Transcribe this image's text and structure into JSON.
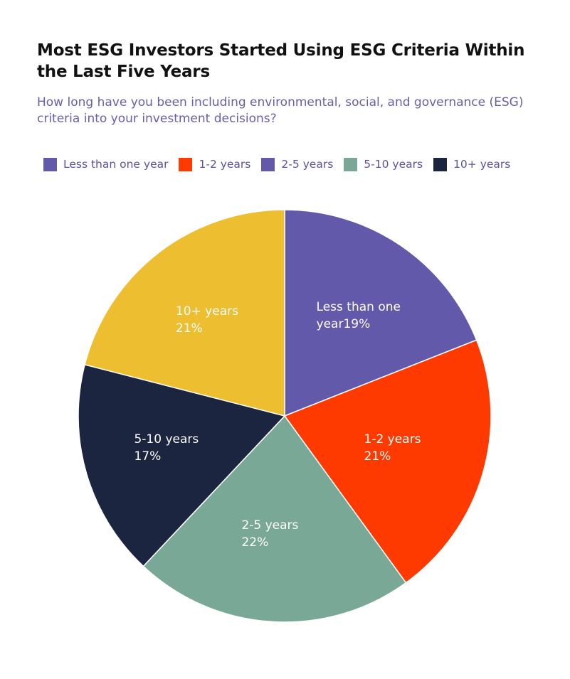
{
  "title": "Most ESG Investors Started Using ESG Criteria Within the Last Five Years",
  "subtitle": "How long have you been including environmental, social, and governance (ESG) criteria into your investment decisions?",
  "chart_data": {
    "type": "pie",
    "legend_position": "top",
    "slices": [
      {
        "label": "Less than one year",
        "value": 19,
        "value_label": "19%",
        "color": "#6259aa",
        "legend_color": "#6259aa",
        "legend_label": "Less than one year",
        "label_lines": [
          "Less than one",
          "year19%"
        ]
      },
      {
        "label": "1-2 years",
        "value": 21,
        "value_label": "21%",
        "color": "#ff3a00",
        "legend_color": "#ff3a00",
        "legend_label": "1-2 years",
        "label_lines": [
          "1-2 years",
          "21%"
        ]
      },
      {
        "label": "2-5 years",
        "value": 22,
        "value_label": "22%",
        "color": "#7aa896",
        "legend_color": "#6259aa",
        "legend_label": "2-5 years",
        "label_lines": [
          "2-5 years",
          "22%"
        ]
      },
      {
        "label": "5-10 years",
        "value": 17,
        "value_label": "17%",
        "color": "#1c2540",
        "legend_color": "#7aa896",
        "legend_label": "5-10 years",
        "label_lines": [
          "5-10 years",
          "17%"
        ]
      },
      {
        "label": "10+ years",
        "value": 21,
        "value_label": "21%",
        "color": "#ecbe30",
        "legend_color": "#1c2540",
        "legend_label": "10+ years",
        "label_lines": [
          "10+ years",
          "21%"
        ]
      }
    ]
  }
}
